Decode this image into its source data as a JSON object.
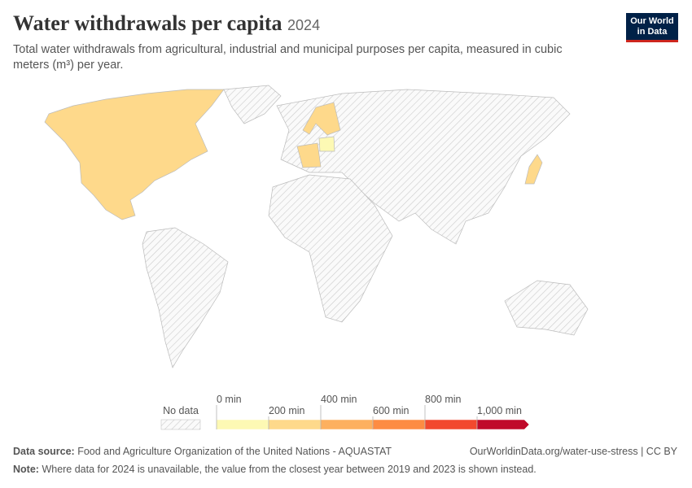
{
  "header": {
    "title": "Water withdrawals per capita",
    "year": "2024",
    "subtitle": "Total water withdrawals from agricultural, industrial and municipal purposes per capita, measured in cubic meters (m³) per year."
  },
  "logo": {
    "line1": "Our World",
    "line2": "in Data"
  },
  "legend": {
    "no_data": "No data",
    "bins": [
      {
        "label": "0 min",
        "color": "#fdf9b4"
      },
      {
        "label": "200 min",
        "color": "#fed98b"
      },
      {
        "label": "400 min",
        "color": "#fdb05f"
      },
      {
        "label": "600 min",
        "color": "#fd8c43"
      },
      {
        "label": "800 min",
        "color": "#f2492e"
      },
      {
        "label": "1,000 min",
        "color": "#c00a2a"
      }
    ]
  },
  "footer": {
    "source_label": "Data source:",
    "source": "Food and Agriculture Organization of the United Nations - AQUASTAT",
    "url": "OurWorldinData.org/water-use-stress | CC BY",
    "note_label": "Note:",
    "note": "Where data for 2024 is unavailable, the value from the closest year between 2019 and 2023 is shown instead."
  }
}
